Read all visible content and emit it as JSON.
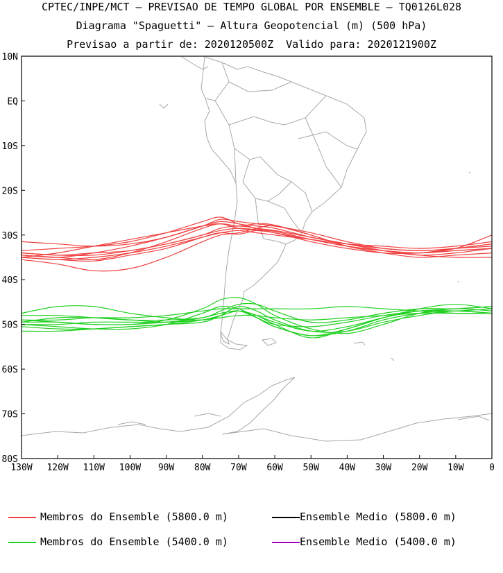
{
  "header": {
    "line1": "CPTEC/INPE/MCT — PREVISAO DE TEMPO GLOBAL POR ENSEMBLE — TQ0126L028",
    "line2": "Diagrama \"Spaguetti\" — Altura Geopotencial (m) (500 hPa)",
    "line3": "Previsao a partir de: 2020120500Z  Valido para: 2020121900Z"
  },
  "chart_data": {
    "type": "line",
    "title": "Diagrama \"Spaguetti\" — Altura Geopotencial (m) (500 hPa)",
    "xlim": [
      -130,
      0
    ],
    "ylim": [
      -80,
      10
    ],
    "x_ticks": [
      {
        "value": -130,
        "label": "130W"
      },
      {
        "value": -120,
        "label": "120W"
      },
      {
        "value": -110,
        "label": "110W"
      },
      {
        "value": -100,
        "label": "100W"
      },
      {
        "value": -90,
        "label": "90W"
      },
      {
        "value": -80,
        "label": "80W"
      },
      {
        "value": -70,
        "label": "70W"
      },
      {
        "value": -60,
        "label": "60W"
      },
      {
        "value": -50,
        "label": "50W"
      },
      {
        "value": -40,
        "label": "40W"
      },
      {
        "value": -30,
        "label": "30W"
      },
      {
        "value": -20,
        "label": "20W"
      },
      {
        "value": -10,
        "label": "10W"
      },
      {
        "value": 0,
        "label": "0"
      }
    ],
    "y_ticks": [
      {
        "value": 10,
        "label": "10N"
      },
      {
        "value": 0,
        "label": "EQ"
      },
      {
        "value": -10,
        "label": "10S"
      },
      {
        "value": -20,
        "label": "20S"
      },
      {
        "value": -30,
        "label": "30S"
      },
      {
        "value": -40,
        "label": "40S"
      },
      {
        "value": -50,
        "label": "50S"
      },
      {
        "value": -60,
        "label": "60S"
      },
      {
        "value": -70,
        "label": "70S"
      },
      {
        "value": -80,
        "label": "80S"
      }
    ],
    "colors": {
      "members_5800": "#f04040",
      "members_5400": "#20d020",
      "mean_5800": "#000000",
      "mean_5400": "#a000c0",
      "coast": "#a8a8a8"
    },
    "x": [
      -130,
      -120,
      -110,
      -100,
      -90,
      -80,
      -75,
      -70,
      -65,
      -60,
      -50,
      -40,
      -30,
      -20,
      -10,
      0
    ],
    "series": [
      {
        "group": "5800",
        "values": [
          -35.0,
          -35.5,
          -35.8,
          -34.5,
          -33.0,
          -30.5,
          -29.5,
          -29.8,
          -29.0,
          -29.2,
          -31.0,
          -32.5,
          -33.5,
          -34.0,
          -33.5,
          -33.0
        ]
      },
      {
        "group": "5800",
        "values": [
          -34.0,
          -34.5,
          -34.0,
          -33.5,
          -32.0,
          -30.0,
          -29.0,
          -28.5,
          -28.8,
          -29.0,
          -30.5,
          -32.0,
          -33.0,
          -33.5,
          -33.0,
          -32.5
        ]
      },
      {
        "group": "5800",
        "values": [
          -35.5,
          -36.5,
          -38.0,
          -37.5,
          -35.0,
          -31.5,
          -30.0,
          -29.5,
          -28.5,
          -28.0,
          -30.0,
          -32.5,
          -33.5,
          -34.0,
          -33.5,
          -33.0
        ]
      },
      {
        "group": "5800",
        "values": [
          -33.5,
          -33.0,
          -32.5,
          -31.5,
          -29.5,
          -27.0,
          -26.0,
          -27.5,
          -28.0,
          -28.5,
          -30.5,
          -32.0,
          -33.5,
          -34.5,
          -34.0,
          -33.0
        ]
      },
      {
        "group": "5800",
        "values": [
          -34.5,
          -35.0,
          -35.5,
          -34.0,
          -31.5,
          -28.5,
          -27.5,
          -28.0,
          -27.5,
          -27.8,
          -30.0,
          -32.5,
          -34.0,
          -35.0,
          -34.5,
          -34.0
        ]
      },
      {
        "group": "5800",
        "values": [
          -31.5,
          -32.0,
          -32.5,
          -32.0,
          -30.5,
          -28.0,
          -26.5,
          -27.0,
          -27.5,
          -28.0,
          -29.5,
          -31.5,
          -33.0,
          -33.5,
          -33.0,
          -32.0
        ]
      },
      {
        "group": "5800",
        "values": [
          -35.0,
          -35.5,
          -35.0,
          -34.0,
          -32.5,
          -30.5,
          -29.5,
          -29.0,
          -29.5,
          -30.0,
          -31.0,
          -32.0,
          -32.5,
          -33.0,
          -32.5,
          -31.5
        ]
      },
      {
        "group": "5800",
        "values": [
          -34.5,
          -35.0,
          -34.0,
          -32.5,
          -30.5,
          -28.0,
          -27.0,
          -27.5,
          -28.5,
          -29.0,
          -30.5,
          -32.0,
          -33.5,
          -34.5,
          -35.0,
          -35.0
        ]
      },
      {
        "group": "5800",
        "values": [
          -35.0,
          -34.0,
          -32.5,
          -31.0,
          -29.5,
          -28.0,
          -27.5,
          -28.5,
          -29.0,
          -29.5,
          -31.5,
          -33.0,
          -34.0,
          -34.0,
          -33.0,
          -32.0
        ]
      },
      {
        "group": "5800",
        "values": [
          -34.0,
          -34.5,
          -34.5,
          -33.5,
          -32.0,
          -30.0,
          -28.5,
          -28.0,
          -28.5,
          -29.5,
          -31.0,
          -32.5,
          -33.5,
          -34.0,
          -33.0,
          -30.0
        ]
      },
      {
        "group": "5400",
        "values": [
          -47.5,
          -46.0,
          -46.0,
          -47.5,
          -48.5,
          -49.0,
          -48.0,
          -47.0,
          -48.0,
          -49.5,
          -51.5,
          -50.5,
          -48.5,
          -47.0,
          -47.0,
          -47.5
        ]
      },
      {
        "group": "5400",
        "values": [
          -49.0,
          -49.0,
          -48.5,
          -48.5,
          -48.0,
          -47.0,
          -46.5,
          -46.5,
          -46.5,
          -46.5,
          -46.5,
          -46.0,
          -46.5,
          -47.0,
          -47.5,
          -47.5
        ]
      },
      {
        "group": "5400",
        "values": [
          -50.0,
          -50.5,
          -51.0,
          -51.0,
          -50.0,
          -47.5,
          -46.0,
          -46.5,
          -48.5,
          -50.5,
          -52.5,
          -51.0,
          -48.5,
          -46.5,
          -45.5,
          -46.5
        ]
      },
      {
        "group": "5400",
        "values": [
          -50.5,
          -51.0,
          -51.0,
          -50.5,
          -50.0,
          -49.0,
          -48.0,
          -47.0,
          -48.5,
          -50.0,
          -50.5,
          -49.5,
          -48.0,
          -47.0,
          -46.5,
          -46.0
        ]
      },
      {
        "group": "5400",
        "values": [
          -49.5,
          -49.5,
          -50.0,
          -50.0,
          -49.0,
          -46.5,
          -44.5,
          -44.0,
          -45.5,
          -48.0,
          -51.0,
          -52.0,
          -50.0,
          -47.5,
          -46.5,
          -47.0
        ]
      },
      {
        "group": "5400",
        "values": [
          -51.5,
          -51.5,
          -51.0,
          -50.5,
          -50.0,
          -49.5,
          -48.0,
          -46.0,
          -47.0,
          -49.0,
          -51.5,
          -51.5,
          -49.5,
          -48.0,
          -47.0,
          -47.5
        ]
      },
      {
        "group": "5400",
        "values": [
          -50.0,
          -50.0,
          -49.5,
          -49.5,
          -49.5,
          -48.5,
          -47.5,
          -47.0,
          -48.5,
          -50.5,
          -52.5,
          -51.5,
          -49.0,
          -47.5,
          -47.0,
          -47.5
        ]
      },
      {
        "group": "5400",
        "values": [
          -49.5,
          -48.5,
          -48.5,
          -49.0,
          -49.5,
          -49.0,
          -48.0,
          -47.0,
          -48.0,
          -50.0,
          -53.0,
          -51.0,
          -48.5,
          -47.0,
          -47.0,
          -46.5
        ]
      },
      {
        "group": "5400",
        "values": [
          -49.0,
          -49.5,
          -50.0,
          -50.0,
          -49.5,
          -49.0,
          -48.5,
          -48.0,
          -48.0,
          -48.5,
          -49.0,
          -48.5,
          -48.0,
          -47.5,
          -47.5,
          -47.5
        ]
      },
      {
        "group": "5400",
        "values": [
          -48.0,
          -48.0,
          -48.5,
          -49.0,
          -49.0,
          -48.5,
          -47.0,
          -45.5,
          -45.5,
          -47.0,
          -49.5,
          -49.0,
          -47.5,
          -46.5,
          -46.5,
          -46.0
        ]
      }
    ]
  },
  "legend": {
    "members_5800": "Membros do Ensemble (5800.0 m)",
    "mean_5800": "Ensemble Medio (5800.0 m)",
    "members_5400": "Membros do Ensemble (5400.0 m)",
    "mean_5400": "Ensemble Medio (5400.0 m)"
  }
}
